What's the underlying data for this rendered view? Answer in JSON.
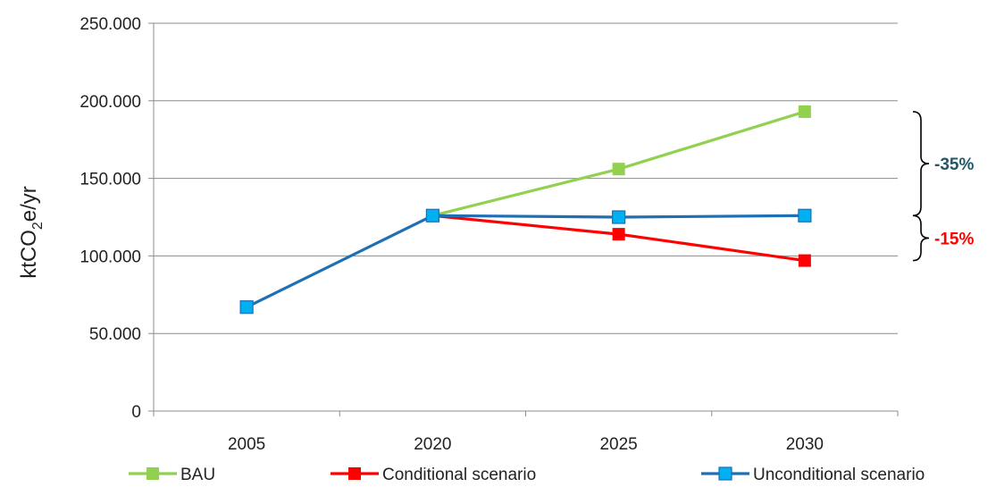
{
  "chart_data": {
    "type": "line",
    "categories": [
      "2005",
      "2020",
      "2025",
      "2030"
    ],
    "ylabel": {
      "prefix": "ktCO",
      "sub": "2",
      "suffix": "e/yr"
    },
    "ylim": [
      0,
      250000
    ],
    "yticks": [
      {
        "value": 0,
        "label": "0"
      },
      {
        "value": 50000,
        "label": "50.000"
      },
      {
        "value": 100000,
        "label": "100.000"
      },
      {
        "value": 150000,
        "label": "150.000"
      },
      {
        "value": 200000,
        "label": "200.000"
      },
      {
        "value": 250000,
        "label": "250.000"
      }
    ],
    "grid": "horizontal",
    "legend": "bottom",
    "series": [
      {
        "name": "BAU",
        "color": "#92d050",
        "values": [
          null,
          126000,
          156000,
          193000
        ]
      },
      {
        "name": "Conditional scenario",
        "color": "#ff0000",
        "values": [
          null,
          126000,
          114000,
          97000
        ]
      },
      {
        "name": "Unconditional scenario",
        "color": "#1f6fb5",
        "marker_color": "#00b0f0",
        "values": [
          67000,
          126000,
          125000,
          126000
        ]
      }
    ],
    "annotations": [
      {
        "text": "-35%",
        "color": "#215868",
        "from": 193000,
        "to": 126000
      },
      {
        "text": "-15%",
        "color": "#ff0000",
        "from": 126000,
        "to": 97000
      }
    ]
  }
}
